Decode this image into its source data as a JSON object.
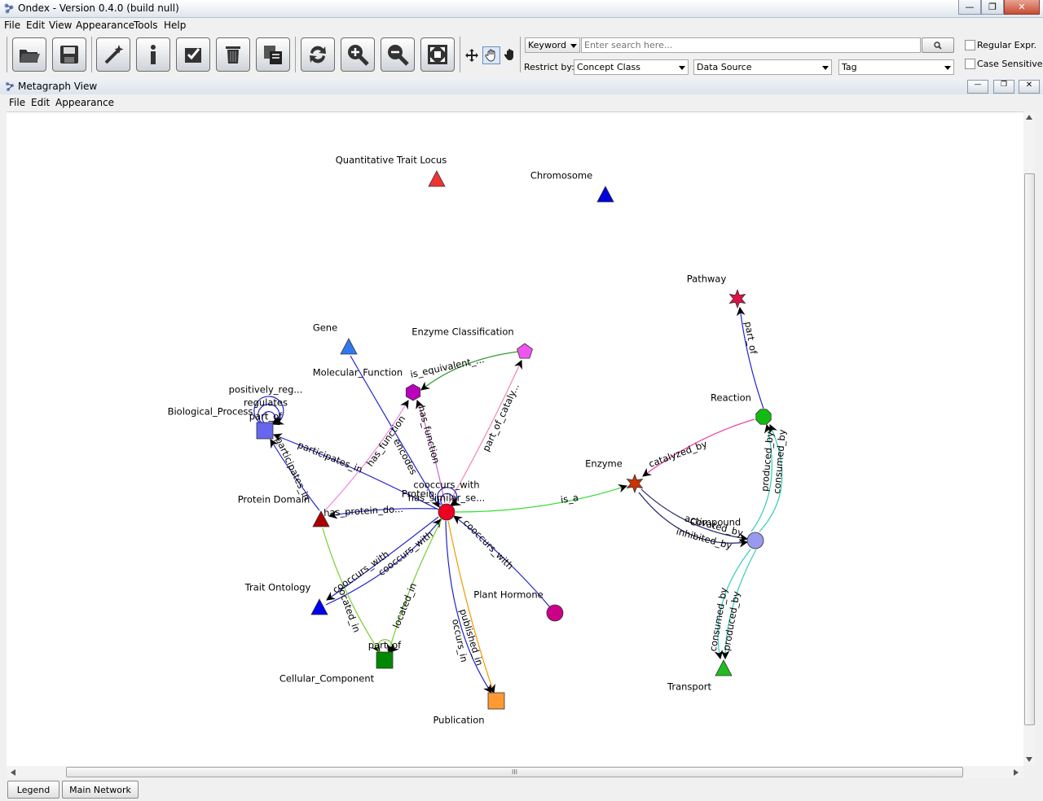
{
  "window": {
    "title": "Ondex - Version 0.4.0 (build null)"
  },
  "menu": [
    "File",
    "Edit",
    "View",
    "Appearance",
    "Tools",
    "Help"
  ],
  "search": {
    "mode": "Keyword",
    "placeholder": "Enter search here...",
    "restrict_label": "Restrict by:",
    "concept_class": "Concept Class",
    "data_source": "Data Source",
    "tag": "Tag",
    "regular_expr": "Regular Expr.",
    "case_sensitive": "Case Sensitive"
  },
  "inner_window": {
    "title": "Metagraph View",
    "menu": [
      "File",
      "Edit",
      "Appearance"
    ]
  },
  "graph": {
    "nodes": [
      {
        "id": "qtl",
        "label": "Quantitative Trait Locus",
        "shape": "triangle",
        "color": "#ee3333"
      },
      {
        "id": "chromosome",
        "label": "Chromosome",
        "shape": "triangle",
        "color": "#0000dd"
      },
      {
        "id": "pathway",
        "label": "Pathway",
        "shape": "star",
        "color": "#dd1144"
      },
      {
        "id": "gene",
        "label": "Gene",
        "shape": "triangle",
        "color": "#3377ee"
      },
      {
        "id": "enzclass",
        "label": "Enzyme Classification",
        "shape": "pentagon",
        "color": "#ee55ee"
      },
      {
        "id": "molfunc",
        "label": "Molecular_Function",
        "shape": "hexagon",
        "color": "#bb00bb"
      },
      {
        "id": "bioproc",
        "label": "Biological_Process",
        "shape": "square",
        "color": "#6666ee"
      },
      {
        "id": "reaction",
        "label": "Reaction",
        "shape": "octagon",
        "color": "#11bb11"
      },
      {
        "id": "enzyme",
        "label": "Enzyme",
        "shape": "star",
        "color": "#cc3300"
      },
      {
        "id": "protdomain",
        "label": "Protein Domain",
        "shape": "triangle",
        "color": "#aa0000"
      },
      {
        "id": "protein",
        "label": "Protein",
        "shape": "circle",
        "color": "#ee0022"
      },
      {
        "id": "compound",
        "label": "Compound",
        "shape": "circle",
        "color": "#9999ee"
      },
      {
        "id": "traitont",
        "label": "Trait Ontology",
        "shape": "triangle",
        "color": "#0000ee"
      },
      {
        "id": "planthormone",
        "label": "Plant Hormone",
        "shape": "circle",
        "color": "#cc0088"
      },
      {
        "id": "cellcomp",
        "label": "Cellular_Component",
        "shape": "square",
        "color": "#008800"
      },
      {
        "id": "publication",
        "label": "Publication",
        "shape": "square",
        "color": "#ff9933"
      },
      {
        "id": "transport",
        "label": "Transport",
        "shape": "triangle",
        "color": "#22bb22"
      }
    ],
    "edges": [
      {
        "id": "e1",
        "label": "part_of",
        "from": "reaction",
        "to": "pathway",
        "color": "#2222cc"
      },
      {
        "id": "e2",
        "label": "catalyzed_by",
        "from": "reaction",
        "to": "enzyme",
        "color": "#ee44aa"
      },
      {
        "id": "e3",
        "label": "produced_by",
        "from": "compound",
        "to": "reaction",
        "color": "#33ccbb"
      },
      {
        "id": "e4",
        "label": "consumed_by",
        "from": "compound",
        "to": "reaction",
        "color": "#33ccbb"
      },
      {
        "id": "e5",
        "label": "activated_by",
        "from": "enzyme",
        "to": "compound",
        "color": "#222266"
      },
      {
        "id": "e6",
        "label": "inhibited_by",
        "from": "enzyme",
        "to": "compound",
        "color": "#222266"
      },
      {
        "id": "e7",
        "label": "consumed_by",
        "from": "compound",
        "to": "transport",
        "color": "#33ccbb"
      },
      {
        "id": "e8",
        "label": "produced_by",
        "from": "compound",
        "to": "transport",
        "color": "#33ccbb"
      },
      {
        "id": "e9",
        "label": "is_a",
        "from": "protein",
        "to": "enzyme",
        "color": "#33dd33"
      },
      {
        "id": "e10",
        "label": "is_equivalent_...",
        "from": "enzclass",
        "to": "molfunc",
        "color": "#339933"
      },
      {
        "id": "e11",
        "label": "part_of_cataly...",
        "from": "protein",
        "to": "enzclass",
        "color": "#ee88aa"
      },
      {
        "id": "e12",
        "label": "has_function",
        "from": "protein",
        "to": "molfunc",
        "color": "#cc66cc"
      },
      {
        "id": "e13",
        "label": "encodes",
        "from": "gene",
        "to": "protein",
        "color": "#2222cc"
      },
      {
        "id": "e14",
        "label": "has_function",
        "from": "protdomain",
        "to": "molfunc",
        "color": "#ee88dd"
      },
      {
        "id": "e15",
        "label": "participates_in",
        "from": "protein",
        "to": "bioproc",
        "color": "#2222cc"
      },
      {
        "id": "e16",
        "label": "participates_in",
        "from": "protdomain",
        "to": "bioproc",
        "color": "#2222cc"
      },
      {
        "id": "e17",
        "label": "positively_reg...",
        "from": "bioproc",
        "to": "bioproc",
        "color": "#2222cc"
      },
      {
        "id": "e18",
        "label": "regulates",
        "from": "bioproc",
        "to": "bioproc",
        "color": "#2222cc"
      },
      {
        "id": "e19",
        "label": "part_of",
        "from": "bioproc",
        "to": "bioproc",
        "color": "#2222cc"
      },
      {
        "id": "e20",
        "label": "has_protein_do...",
        "from": "protein",
        "to": "protdomain",
        "color": "#2222cc"
      },
      {
        "id": "e21",
        "label": "cooccurs_with",
        "from": "protein",
        "to": "protein",
        "color": "#2222cc"
      },
      {
        "id": "e22",
        "label": "has_similar_se...",
        "from": "protein",
        "to": "protein",
        "color": "#2222cc"
      },
      {
        "id": "e23",
        "label": "cooccurs_with",
        "from": "protein",
        "to": "traitont",
        "color": "#2222cc"
      },
      {
        "id": "e24",
        "label": "cooccurs_with",
        "from": "traitont",
        "to": "protein",
        "color": "#2222cc"
      },
      {
        "id": "e25",
        "label": "cooccurs_with",
        "from": "planthormone",
        "to": "protein",
        "color": "#2222cc"
      },
      {
        "id": "e26",
        "label": "located_in",
        "from": "protdomain",
        "to": "cellcomp",
        "color": "#77cc33"
      },
      {
        "id": "e27",
        "label": "located_in",
        "from": "protein",
        "to": "cellcomp",
        "color": "#77cc33"
      },
      {
        "id": "e28",
        "label": "part_of",
        "from": "cellcomp",
        "to": "cellcomp",
        "color": "#77cc33"
      },
      {
        "id": "e29",
        "label": "occurs_in",
        "from": "protein",
        "to": "publication",
        "color": "#2222cc"
      },
      {
        "id": "e30",
        "label": "published_in",
        "from": "protein",
        "to": "publication",
        "color": "#ee9900"
      }
    ]
  },
  "tabs": [
    "Legend",
    "Main Network"
  ],
  "hscroll_grip": "III"
}
